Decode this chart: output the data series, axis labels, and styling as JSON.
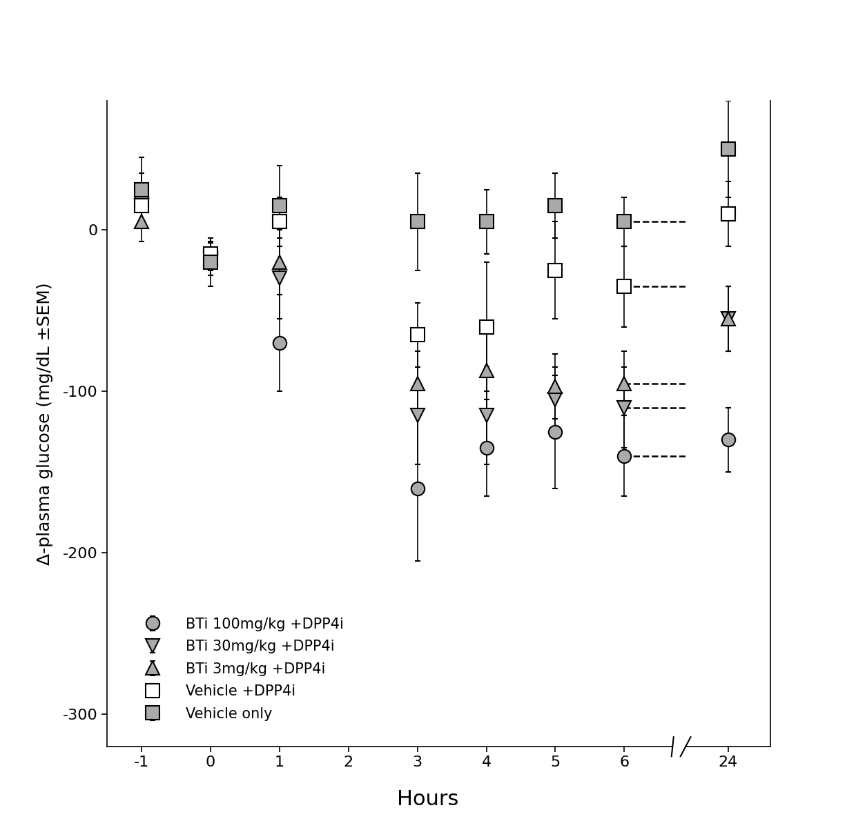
{
  "x_positions": [
    -1,
    0,
    1,
    3,
    4,
    5,
    6,
    24
  ],
  "x_labels": [
    "-1",
    "0",
    "1",
    "2",
    "3",
    "4",
    "5",
    "6",
    "24"
  ],
  "x_ticks_display": [
    -1,
    0,
    1,
    2,
    3,
    4,
    5,
    6,
    24
  ],
  "series": [
    {
      "label": "BTi 100mg/kg +DPP4i",
      "y": [
        20,
        -15,
        -70,
        -160,
        -135,
        -125,
        -140,
        -130
      ],
      "yerr": [
        15,
        10,
        30,
        45,
        30,
        35,
        25,
        20
      ],
      "marker": "o",
      "marker_style": "hatched_circle",
      "linestyle": "-",
      "linewidth": 1.8
    },
    {
      "label": "BTi 30mg/kg +DPP4i",
      "y": [
        15,
        -18,
        -30,
        -115,
        -115,
        -105,
        -110,
        -55
      ],
      "yerr": [
        12,
        10,
        25,
        30,
        30,
        20,
        25,
        20
      ],
      "marker": "v",
      "marker_style": "hatched_triangle_down",
      "linestyle": "-",
      "linewidth": 1.8
    },
    {
      "label": "BTi 3mg/kg +DPP4i",
      "y": [
        5,
        -18,
        -20,
        -95,
        -87,
        -97,
        -95,
        -55
      ],
      "yerr": [
        12,
        10,
        20,
        20,
        25,
        20,
        20,
        20
      ],
      "marker": "^",
      "marker_style": "hatched_triangle_up",
      "linestyle": "-",
      "linewidth": 1.8
    },
    {
      "label": "Vehicle +DPP4i",
      "y": [
        15,
        -15,
        5,
        -65,
        -60,
        -25,
        -35,
        10
      ],
      "yerr": [
        10,
        8,
        15,
        20,
        40,
        30,
        25,
        20
      ],
      "marker": "s",
      "marker_style": "open_square",
      "linestyle": "-",
      "linewidth": 1.8
    },
    {
      "label": "Vehicle only",
      "y": [
        25,
        -20,
        15,
        5,
        5,
        15,
        5,
        50
      ],
      "yerr": [
        20,
        15,
        25,
        30,
        20,
        20,
        15,
        30
      ],
      "marker": "s",
      "marker_style": "hatched_square",
      "linestyle": "-",
      "linewidth": 1.8
    }
  ],
  "ylabel": "Δ-plasma glucose (mg/dL ±SEM)",
  "xlabel": "Hours",
  "ylim": [
    -320,
    80
  ],
  "yticks": [
    0,
    -100,
    -200,
    -300
  ],
  "background_color": "#ffffff",
  "axis_color": "#000000",
  "linewidth": 1.5,
  "markersize": 14,
  "legend_loc": "lower left",
  "break_x": true,
  "break_after": 6,
  "break_before": 24,
  "figsize": [
    12.4,
    12.16
  ],
  "dpi": 100
}
